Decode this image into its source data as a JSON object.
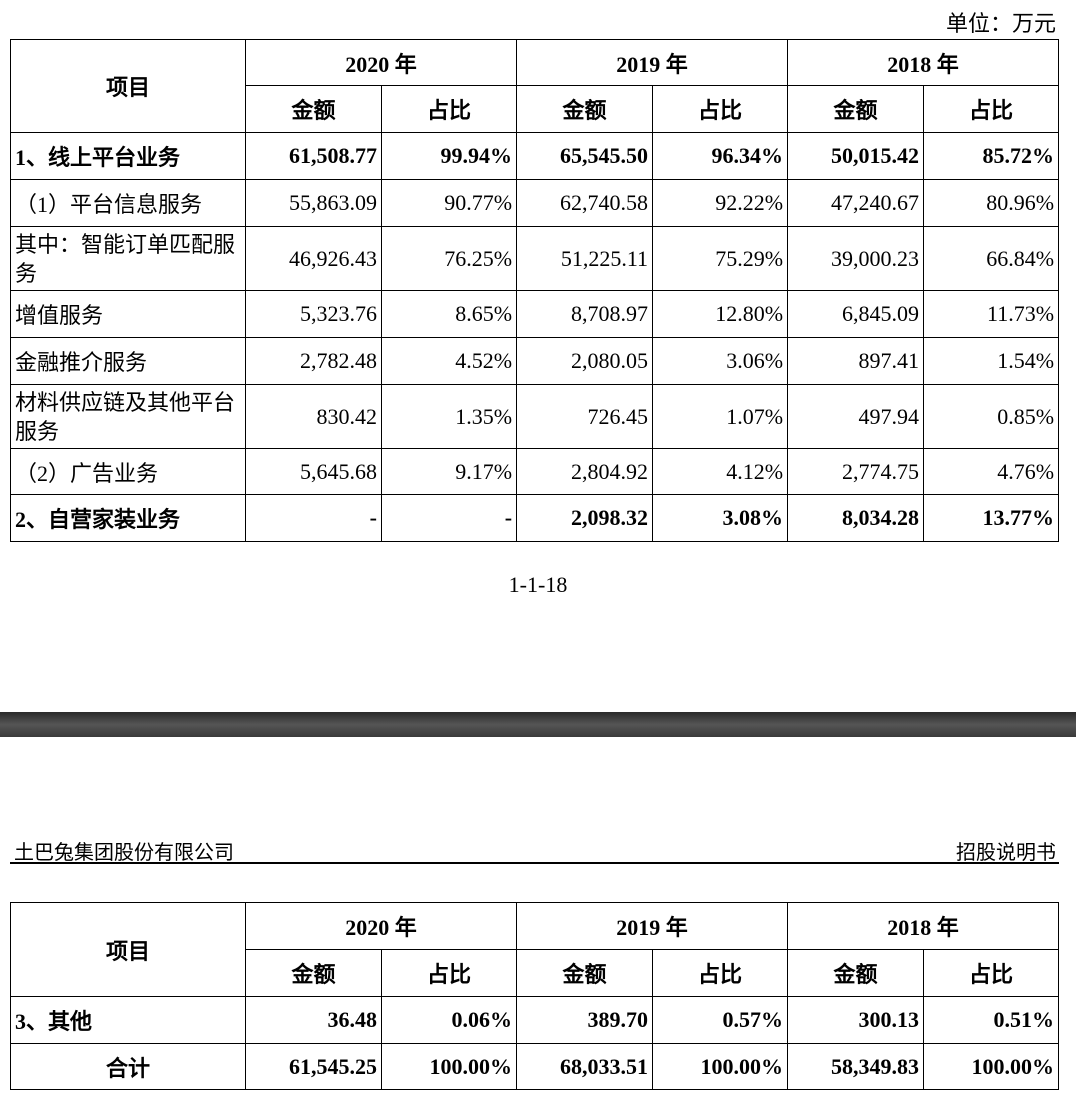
{
  "unit": "单位：万元",
  "table_headers": {
    "item": "项目",
    "years": [
      "2020 年",
      "2019 年",
      "2018 年"
    ],
    "sub": [
      "金额",
      "占比",
      "金额",
      "占比",
      "金额",
      "占比"
    ]
  },
  "table1_rows": [
    {
      "label": "1、线上平台业务",
      "bold": true,
      "values": [
        "61,508.77",
        "99.94%",
        "65,545.50",
        "96.34%",
        "50,015.42",
        "85.72%"
      ]
    },
    {
      "label": "（1）平台信息服务",
      "bold": false,
      "values": [
        "55,863.09",
        "90.77%",
        "62,740.58",
        "92.22%",
        "47,240.67",
        "80.96%"
      ]
    },
    {
      "label": "其中：智能订单匹配服务",
      "bold": false,
      "wrap": true,
      "values": [
        "46,926.43",
        "76.25%",
        "51,225.11",
        "75.29%",
        "39,000.23",
        "66.84%"
      ]
    },
    {
      "label": "增值服务",
      "bold": false,
      "values": [
        "5,323.76",
        "8.65%",
        "8,708.97",
        "12.80%",
        "6,845.09",
        "11.73%"
      ]
    },
    {
      "label": "金融推介服务",
      "bold": false,
      "values": [
        "2,782.48",
        "4.52%",
        "2,080.05",
        "3.06%",
        "897.41",
        "1.54%"
      ]
    },
    {
      "label": "材料供应链及其他平台服务",
      "bold": false,
      "wrap": true,
      "values": [
        "830.42",
        "1.35%",
        "726.45",
        "1.07%",
        "497.94",
        "0.85%"
      ]
    },
    {
      "label": "（2）广告业务",
      "bold": false,
      "values": [
        "5,645.68",
        "9.17%",
        "2,804.92",
        "4.12%",
        "2,774.75",
        "4.76%"
      ]
    },
    {
      "label": "2、自营家装业务",
      "bold": true,
      "values": [
        "-",
        "-",
        "2,098.32",
        "3.08%",
        "8,034.28",
        "13.77%"
      ]
    }
  ],
  "page_number": "1-1-18",
  "company": "土巴兔集团股份有限公司",
  "doc_type": "招股说明书",
  "table2_rows": [
    {
      "label": "3、其他",
      "bold": true,
      "values": [
        "36.48",
        "0.06%",
        "389.70",
        "0.57%",
        "300.13",
        "0.51%"
      ]
    },
    {
      "label": "合计",
      "bold": true,
      "center": true,
      "values": [
        "61,545.25",
        "100.00%",
        "68,033.51",
        "100.00%",
        "58,349.83",
        "100.00%"
      ]
    }
  ]
}
